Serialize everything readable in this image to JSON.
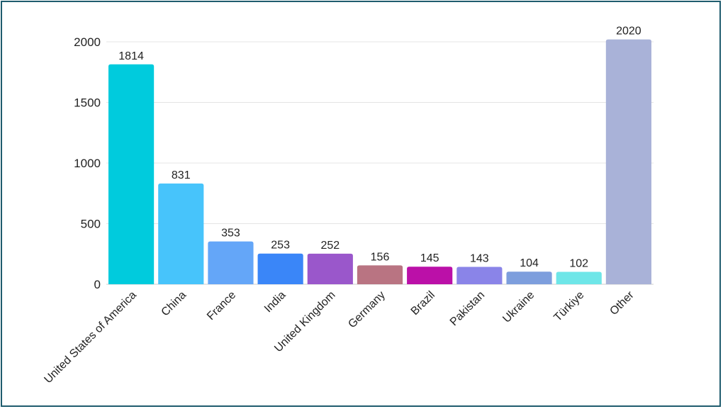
{
  "chart_data": {
    "type": "bar",
    "categories": [
      "United States of America",
      "China",
      "France",
      "India",
      "United Kingdom",
      "Germany",
      "Brazil",
      "Pakistan",
      "Ukraine",
      "Türkiye",
      "Other"
    ],
    "values": [
      1814,
      831,
      353,
      253,
      252,
      156,
      145,
      143,
      104,
      102,
      2020
    ],
    "colors": [
      "#00cbdd",
      "#47c4fb",
      "#64a6f8",
      "#3a86f8",
      "#9a57cb",
      "#b97482",
      "#bb10a8",
      "#8a84e8",
      "#7d9edd",
      "#6ee6e8",
      "#a9b2d8"
    ],
    "ylim": [
      0,
      2000
    ],
    "yticks": [
      0,
      500,
      1000,
      1500,
      2000
    ],
    "grid": true,
    "title": "",
    "xlabel": "",
    "ylabel": ""
  }
}
